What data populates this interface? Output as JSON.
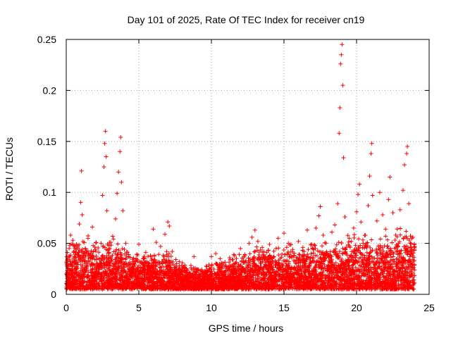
{
  "chart_data": {
    "type": "scatter",
    "title": "Day 101 of 2025, Rate Of TEC Index for receiver cn19",
    "xlabel": "GPS time / hours",
    "ylabel": "ROTI / TECUs",
    "xlim": [
      0,
      25
    ],
    "ylim": [
      0,
      0.25
    ],
    "x_ticks": [
      "0",
      "5",
      "10",
      "15",
      "20",
      "25"
    ],
    "y_ticks": [
      "0",
      "0.05",
      "0.1",
      "0.15",
      "0.2",
      "0.25"
    ],
    "grid": true,
    "marker": "plus",
    "color": "#ff0000",
    "series": [
      {
        "points": [
          [
            0.05,
            0.021
          ],
          [
            0.1,
            0.034
          ],
          [
            0.2,
            0.045
          ],
          [
            0.3,
            0.058
          ],
          [
            0.4,
            0.028
          ],
          [
            0.5,
            0.016
          ],
          [
            0.7,
            0.049
          ],
          [
            0.9,
            0.069
          ],
          [
            1.0,
            0.09
          ],
          [
            1.05,
            0.121
          ],
          [
            1.1,
            0.078
          ],
          [
            1.3,
            0.033
          ],
          [
            1.5,
            0.055
          ],
          [
            1.7,
            0.038
          ],
          [
            1.8,
            0.066
          ],
          [
            2.0,
            0.044
          ],
          [
            2.2,
            0.029
          ],
          [
            2.4,
            0.05
          ],
          [
            2.5,
            0.097
          ],
          [
            2.6,
            0.125
          ],
          [
            2.65,
            0.148
          ],
          [
            2.7,
            0.16
          ],
          [
            2.75,
            0.135
          ],
          [
            2.8,
            0.082
          ],
          [
            3.0,
            0.045
          ],
          [
            3.2,
            0.057
          ],
          [
            3.4,
            0.074
          ],
          [
            3.5,
            0.099
          ],
          [
            3.6,
            0.12
          ],
          [
            3.7,
            0.14
          ],
          [
            3.75,
            0.154
          ],
          [
            3.8,
            0.11
          ],
          [
            3.9,
            0.082
          ],
          [
            4.1,
            0.05
          ],
          [
            4.3,
            0.039
          ],
          [
            4.6,
            0.032
          ],
          [
            5.0,
            0.049
          ],
          [
            5.3,
            0.035
          ],
          [
            5.6,
            0.027
          ],
          [
            5.8,
            0.038
          ],
          [
            6.0,
            0.064
          ],
          [
            6.2,
            0.051
          ],
          [
            6.5,
            0.047
          ],
          [
            6.8,
            0.059
          ],
          [
            7.0,
            0.071
          ],
          [
            7.1,
            0.067
          ],
          [
            7.3,
            0.042
          ],
          [
            7.6,
            0.03
          ],
          [
            8.0,
            0.031
          ],
          [
            8.3,
            0.024
          ],
          [
            8.6,
            0.026
          ],
          [
            8.8,
            0.037
          ],
          [
            9.1,
            0.024
          ],
          [
            9.4,
            0.02
          ],
          [
            9.8,
            0.023
          ],
          [
            10.0,
            0.037
          ],
          [
            10.3,
            0.04
          ],
          [
            10.6,
            0.035
          ],
          [
            11.0,
            0.027
          ],
          [
            11.3,
            0.034
          ],
          [
            11.6,
            0.038
          ],
          [
            12.0,
            0.045
          ],
          [
            12.3,
            0.039
          ],
          [
            12.6,
            0.05
          ],
          [
            12.8,
            0.056
          ],
          [
            13.0,
            0.063
          ],
          [
            13.2,
            0.052
          ],
          [
            13.5,
            0.046
          ],
          [
            13.8,
            0.041
          ],
          [
            14.0,
            0.049
          ],
          [
            14.3,
            0.037
          ],
          [
            14.6,
            0.055
          ],
          [
            15.0,
            0.06
          ],
          [
            15.3,
            0.05
          ],
          [
            15.6,
            0.044
          ],
          [
            16.0,
            0.052
          ],
          [
            16.3,
            0.046
          ],
          [
            16.6,
            0.063
          ],
          [
            16.9,
            0.049
          ],
          [
            17.2,
            0.065
          ],
          [
            17.4,
            0.077
          ],
          [
            17.5,
            0.086
          ],
          [
            17.7,
            0.058
          ],
          [
            18.0,
            0.04
          ],
          [
            18.3,
            0.061
          ],
          [
            18.5,
            0.068
          ],
          [
            18.7,
            0.089
          ],
          [
            18.8,
            0.158
          ],
          [
            18.85,
            0.183
          ],
          [
            18.9,
            0.226
          ],
          [
            18.95,
            0.235
          ],
          [
            19.0,
            0.245
          ],
          [
            19.05,
            0.205
          ],
          [
            19.1,
            0.134
          ],
          [
            19.2,
            0.076
          ],
          [
            19.5,
            0.055
          ],
          [
            19.8,
            0.065
          ],
          [
            20.0,
            0.081
          ],
          [
            20.1,
            0.098
          ],
          [
            20.2,
            0.108
          ],
          [
            20.3,
            0.071
          ],
          [
            20.6,
            0.058
          ],
          [
            20.8,
            0.087
          ],
          [
            20.9,
            0.116
          ],
          [
            21.0,
            0.138
          ],
          [
            21.05,
            0.148
          ],
          [
            21.1,
            0.097
          ],
          [
            21.4,
            0.072
          ],
          [
            21.6,
            0.1
          ],
          [
            21.8,
            0.078
          ],
          [
            22.0,
            0.064
          ],
          [
            22.2,
            0.093
          ],
          [
            22.3,
            0.115
          ],
          [
            22.5,
            0.08
          ],
          [
            22.8,
            0.064
          ],
          [
            23.0,
            0.083
          ],
          [
            23.2,
            0.102
          ],
          [
            23.3,
            0.127
          ],
          [
            23.45,
            0.138
          ],
          [
            23.5,
            0.145
          ],
          [
            23.6,
            0.089
          ],
          [
            23.8,
            0.055
          ],
          [
            24.0,
            0.047
          ]
        ]
      }
    ],
    "noise_band": {
      "x_range": [
        0,
        24
      ],
      "y_min": 0.005,
      "y_max_profile": [
        [
          0,
          0.036
        ],
        [
          1,
          0.042
        ],
        [
          2,
          0.038
        ],
        [
          3,
          0.04
        ],
        [
          4,
          0.034
        ],
        [
          5,
          0.031
        ],
        [
          6,
          0.028
        ],
        [
          7,
          0.03
        ],
        [
          8,
          0.022
        ],
        [
          9,
          0.02
        ],
        [
          10,
          0.023
        ],
        [
          11,
          0.026
        ],
        [
          12,
          0.03
        ],
        [
          13,
          0.034
        ],
        [
          14,
          0.033
        ],
        [
          15,
          0.036
        ],
        [
          16,
          0.034
        ],
        [
          17,
          0.036
        ],
        [
          18,
          0.038
        ],
        [
          19,
          0.04
        ],
        [
          20,
          0.043
        ],
        [
          21,
          0.04
        ],
        [
          22,
          0.042
        ],
        [
          23,
          0.045
        ],
        [
          24,
          0.043
        ]
      ]
    }
  }
}
